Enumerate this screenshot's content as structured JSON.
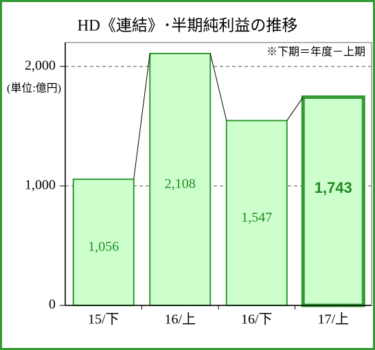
{
  "chart_data": {
    "type": "bar",
    "title": "HD《連結》･半期純利益の推移",
    "note": "※下期＝年度－上期",
    "unit_label": "(単位:億円)",
    "categories": [
      "15/下",
      "16/上",
      "16/下",
      "17/上"
    ],
    "values": [
      1056,
      2108,
      1547,
      1743
    ],
    "value_labels": [
      "1,056",
      "2,108",
      "1,547",
      "1,743"
    ],
    "color": "#ccffcc",
    "edge_color": "#339933",
    "label_color": "#228b22",
    "ylim": [
      0,
      2200
    ],
    "yticks": [
      {
        "value": 0,
        "label": "0"
      },
      {
        "value": 1000,
        "label": "1,000"
      },
      {
        "value": 2000,
        "label": "2,000"
      }
    ],
    "grid": true
  }
}
